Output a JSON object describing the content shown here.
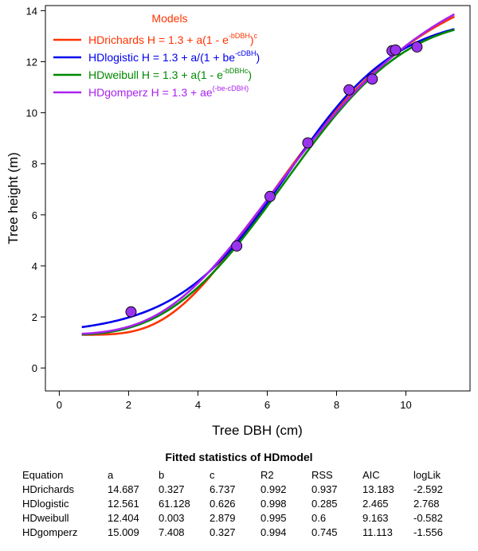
{
  "chart_data": {
    "type": "line",
    "xlabel": "Tree DBH (cm)",
    "ylabel": "Tree height (m)",
    "xlim": [
      -0.4,
      11.85
    ],
    "ylim": [
      -0.9,
      14.2
    ],
    "x_ticks": [
      0,
      2,
      4,
      6,
      8,
      10
    ],
    "y_ticks": [
      0,
      2,
      4,
      6,
      8,
      10,
      12,
      14
    ],
    "grid": false,
    "legend": {
      "title": "Models",
      "position": "top-left",
      "title_color": "#ff3300"
    },
    "points": {
      "marker": "circle",
      "color": "#9933ee",
      "x": [
        2.07,
        5.12,
        6.08,
        7.17,
        8.36,
        9.03,
        9.6,
        9.7,
        10.32
      ],
      "y": [
        2.2,
        4.78,
        6.72,
        8.82,
        10.9,
        11.32,
        12.43,
        12.46,
        12.58
      ]
    },
    "series": [
      {
        "name": "HDrichards",
        "model": "richards",
        "color": "#ff3300",
        "formula_base": "H = 1.3 + a(1 - e",
        "formula_sup": "-bDBH",
        "formula_tail": ")",
        "formula_tail_sup": "c",
        "params": {
          "a": 14.687,
          "b": 0.327,
          "c": 6.737
        }
      },
      {
        "name": "HDlogistic",
        "model": "logistic",
        "color": "#0000ee",
        "formula_base": "H = 1.3 + a/(1 + be",
        "formula_sup": "-cDBH",
        "formula_tail": ")",
        "formula_tail_sup": "",
        "params": {
          "a": 12.561,
          "b": 61.128,
          "c": 0.626
        }
      },
      {
        "name": "HDweibull",
        "model": "weibull",
        "color": "#008800",
        "formula_base": "H = 1.3 + a(1 - e",
        "formula_sup": "-bDBHc",
        "formula_tail": ")",
        "formula_tail_sup": "",
        "params": {
          "a": 12.404,
          "b": 0.003,
          "c": 2.879
        }
      },
      {
        "name": "HDgomperz",
        "model": "gompertz",
        "color": "#aa22ee",
        "formula_base": "H = 1.3 + ae",
        "formula_sup": "(-be-cDBH)",
        "formula_tail": "",
        "formula_tail_sup": "",
        "params": {
          "a": 15.009,
          "b": 7.408,
          "c": 0.327
        }
      }
    ],
    "x_range_curves": [
      0.65,
      11.4
    ]
  },
  "stats": {
    "title": "Fitted statistics of HDmodel",
    "columns": [
      "Equation",
      "a",
      "b",
      "c",
      "R2",
      "RSS",
      "AIC",
      "logLik"
    ],
    "rows": [
      [
        "HDrichards",
        "14.687",
        "0.327",
        "6.737",
        "0.992",
        "0.937",
        "13.183",
        "-2.592"
      ],
      [
        "HDlogistic",
        "12.561",
        "61.128",
        "0.626",
        "0.998",
        "0.285",
        "2.465",
        "2.768"
      ],
      [
        "HDweibull",
        "12.404",
        "0.003",
        "2.879",
        "0.995",
        "0.6",
        "9.163",
        "-0.582"
      ],
      [
        "HDgomperz",
        "15.009",
        "7.408",
        "0.327",
        "0.994",
        "0.745",
        "11.113",
        "-1.556"
      ]
    ]
  }
}
